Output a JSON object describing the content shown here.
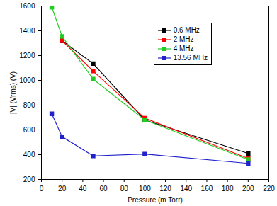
{
  "chart_data": {
    "type": "line",
    "x_label": "Pressure (m Torr)",
    "y_label": "|V| (Vrms) (V)",
    "xlim": [
      0,
      220
    ],
    "xticks": [
      0,
      20,
      40,
      60,
      80,
      100,
      120,
      140,
      160,
      180,
      200,
      220
    ],
    "ylim": [
      200,
      1600
    ],
    "yticks": [
      200,
      400,
      600,
      800,
      1000,
      1200,
      1400,
      1600
    ],
    "legend": "upper right",
    "marker": "square",
    "series": [
      {
        "name": "0.6 MHz",
        "color": "#000000",
        "x": [
          20,
          50,
          100,
          200
        ],
        "values": [
          1320,
          1135,
          680,
          410
        ]
      },
      {
        "name": "2 MHz",
        "color": "#ff0000",
        "x": [
          20,
          50,
          100,
          200
        ],
        "values": [
          1320,
          1075,
          695,
          370
        ]
      },
      {
        "name": "4 MHz",
        "color": "#22cc22",
        "x": [
          10,
          20,
          50,
          100,
          200
        ],
        "values": [
          1590,
          1355,
          1010,
          680,
          360
        ]
      },
      {
        "name": "13.56 MHz",
        "color": "#2222cc",
        "x": [
          10,
          20,
          50,
          100,
          200
        ],
        "values": [
          730,
          545,
          390,
          405,
          330
        ]
      }
    ]
  }
}
